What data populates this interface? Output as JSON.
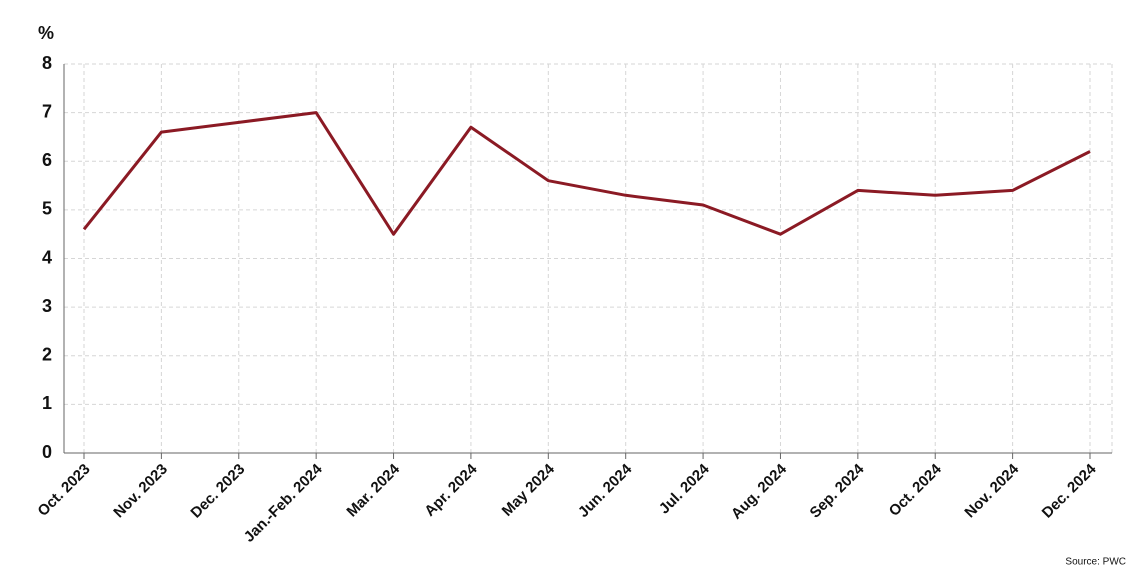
{
  "chart_data": {
    "type": "line",
    "y_label": "%",
    "source": "Source: PWC",
    "categories": [
      "Oct. 2023",
      "Nov. 2023",
      "Dec. 2023",
      "Jan.-Feb. 2024",
      "Mar. 2024",
      "Apr. 2024",
      "May 2024",
      "Jun. 2024",
      "Jul. 2024",
      "Aug. 2024",
      "Sep. 2024",
      "Oct. 2024",
      "Nov. 2024",
      "Dec. 2024"
    ],
    "values": [
      4.6,
      6.6,
      6.8,
      7.0,
      4.5,
      6.7,
      5.6,
      5.3,
      5.1,
      4.5,
      5.4,
      5.3,
      5.4,
      6.2
    ],
    "color": "#8b1a24",
    "ylim": [
      0,
      8
    ],
    "yticks": [
      0,
      1,
      2,
      3,
      4,
      5,
      6,
      7,
      8
    ],
    "grid": true
  }
}
